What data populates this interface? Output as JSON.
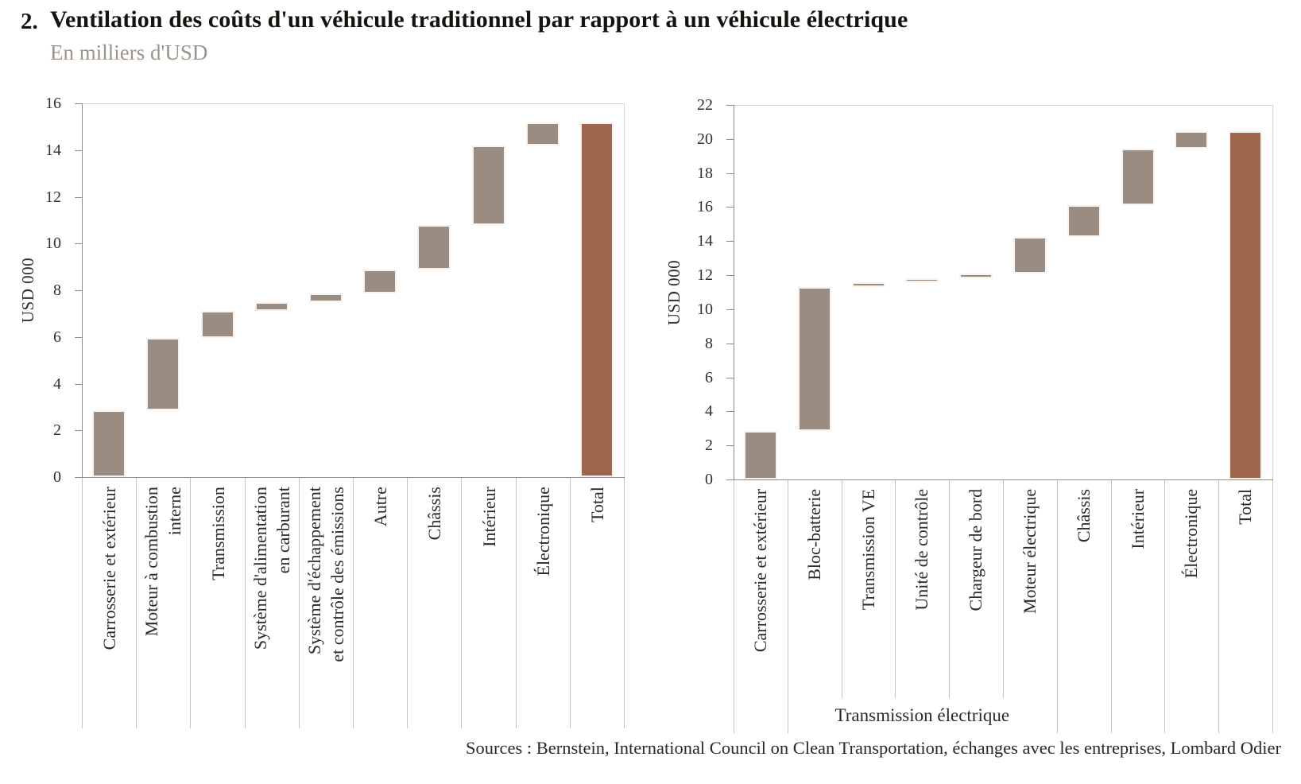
{
  "header": {
    "number": "2.",
    "title": "Ventilation des coûts d'un véhicule traditionnel par rapport à un véhicule électrique",
    "subtitle": "En milliers d'USD"
  },
  "footer": {
    "sources": "Sources : Bernstein, International Council on Clean Transportation, échanges avec les entreprises, Lombard Odier"
  },
  "colors": {
    "segment": "#9A8C80",
    "total": "#A0664D"
  },
  "chart_data": [
    {
      "type": "bar",
      "variant": "waterfall",
      "title": "",
      "ylabel": "USD 000",
      "ylim": [
        0,
        16
      ],
      "yticks": [
        0,
        2,
        4,
        6,
        8,
        10,
        12,
        14,
        16
      ],
      "grid": false,
      "legend": false,
      "bars": [
        {
          "category": "Carrosserie et extérieur",
          "from": 0,
          "to": 2.85,
          "is_total": false
        },
        {
          "category": "Moteur à combustion\ninterne",
          "from": 2.85,
          "to": 5.95,
          "is_total": false
        },
        {
          "category": "Transmission",
          "from": 5.95,
          "to": 7.1,
          "is_total": false
        },
        {
          "category": "Système d'alimentation\nen carburant",
          "from": 7.1,
          "to": 7.5,
          "is_total": false
        },
        {
          "category": "Système d'échappement\net contrôle des émissions",
          "from": 7.5,
          "to": 7.85,
          "is_total": false
        },
        {
          "category": "Autre",
          "from": 7.85,
          "to": 8.9,
          "is_total": false
        },
        {
          "category": "Châssis",
          "from": 8.9,
          "to": 10.8,
          "is_total": false
        },
        {
          "category": "Intérieur",
          "from": 10.8,
          "to": 14.2,
          "is_total": false
        },
        {
          "category": "Électronique",
          "from": 14.2,
          "to": 15.2,
          "is_total": false
        },
        {
          "category": "Total",
          "from": 0,
          "to": 15.2,
          "is_total": true
        }
      ]
    },
    {
      "type": "bar",
      "variant": "waterfall",
      "title": "",
      "ylabel": "USD 000",
      "ylim": [
        0,
        22
      ],
      "yticks": [
        0,
        2,
        4,
        6,
        8,
        10,
        12,
        14,
        16,
        18,
        20,
        22
      ],
      "grid": false,
      "legend": false,
      "bars": [
        {
          "category": "Carrosserie et extérieur",
          "from": 0,
          "to": 2.85,
          "is_total": false
        },
        {
          "category": "Bloc-batterie",
          "from": 2.85,
          "to": 11.3,
          "is_total": false
        },
        {
          "category": "Transmission VE",
          "from": 11.3,
          "to": 11.6,
          "is_total": false
        },
        {
          "category": "Unité de contrôle",
          "from": 11.6,
          "to": 11.8,
          "is_total": false
        },
        {
          "category": "Chargeur de bord",
          "from": 11.8,
          "to": 12.1,
          "is_total": false
        },
        {
          "category": "Moteur électrique",
          "from": 12.1,
          "to": 14.25,
          "is_total": false
        },
        {
          "category": "Châssis",
          "from": 14.25,
          "to": 16.1,
          "is_total": false
        },
        {
          "category": "Intérieur",
          "from": 16.1,
          "to": 19.45,
          "is_total": false
        },
        {
          "category": "Électronique",
          "from": 19.45,
          "to": 20.45,
          "is_total": false
        },
        {
          "category": "Total",
          "from": 0,
          "to": 20.45,
          "is_total": true
        }
      ],
      "group": {
        "label": "Transmission électrique",
        "start_index": 1,
        "end_index": 5
      }
    }
  ]
}
